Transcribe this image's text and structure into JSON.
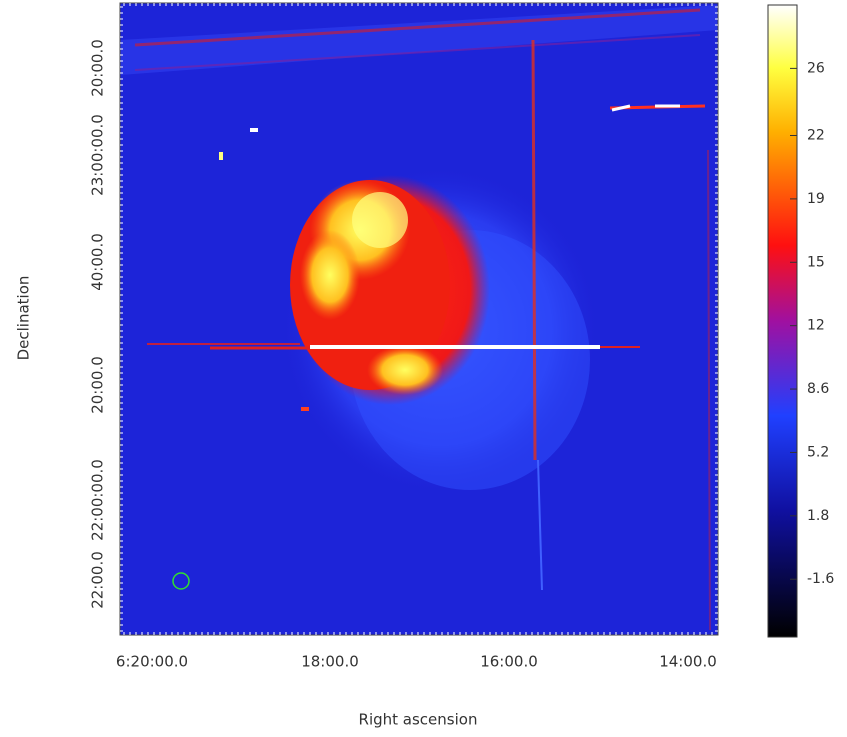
{
  "chart_data": {
    "type": "image",
    "x_label": "Right ascension",
    "y_label": "Declination",
    "xticks": [
      "6:20:00.0",
      "18:00.0",
      "16:00.0",
      "14:00.0"
    ],
    "yticks": [
      "20:00.0",
      "23:00:00.0",
      "40:00.0",
      "20:00.0",
      "22:00:00.0",
      "22:00.0"
    ],
    "colorbar": {
      "clim": [
        -4.7,
        29.2
      ],
      "ticks": [
        {
          "value": 25.8,
          "label": "26"
        },
        {
          "value": 22.2,
          "label": "22"
        },
        {
          "value": 18.8,
          "label": "19"
        },
        {
          "value": 15.4,
          "label": "15"
        },
        12,
        8.6,
        5.2,
        1.8,
        -1.6
      ]
    }
  }
}
